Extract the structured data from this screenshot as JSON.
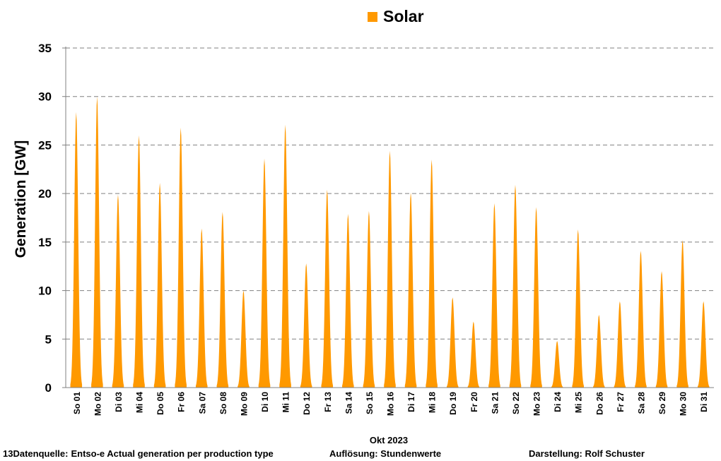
{
  "chart_data": {
    "type": "area",
    "series": [
      {
        "name": "Solar",
        "color": "#FF9900",
        "daily_peaks_GW": [
          28.4,
          30.0,
          19.9,
          26.0,
          21.1,
          26.8,
          16.4,
          18.1,
          10.0,
          23.6,
          27.1,
          12.8,
          20.4,
          17.9,
          18.2,
          24.4,
          20.1,
          23.5,
          9.3,
          6.8,
          19.0,
          20.9,
          18.6,
          4.8,
          16.3,
          7.5,
          8.9,
          14.1,
          12.0,
          15.2,
          8.9
        ]
      }
    ],
    "categories": [
      "So 01",
      "Mo 02",
      "Di 03",
      "Mi 04",
      "Do 05",
      "Fr 06",
      "Sa 07",
      "So 08",
      "Mo 09",
      "Di 10",
      "Mi 11",
      "Do 12",
      "Fr 13",
      "Sa 14",
      "So 15",
      "Mo 16",
      "Di 17",
      "Mi 18",
      "Do 19",
      "Fr 20",
      "Sa 21",
      "So 22",
      "Mo 23",
      "Di 24",
      "Mi 25",
      "Do 26",
      "Fr 27",
      "Sa 28",
      "So 29",
      "Mo 30",
      "Di 31"
    ],
    "ylabel": "Generation   [GW]",
    "xlabel": "Okt 2023",
    "ylim": [
      0,
      35
    ],
    "yticks": [
      0,
      5,
      10,
      15,
      20,
      25,
      30,
      35
    ],
    "grid": true,
    "legend_position": "top-center"
  },
  "legend": {
    "label": "Solar"
  },
  "footer": {
    "source_prefix": "13Datenquelle:",
    "source": "Entso-e  Actual generation per production type",
    "resolution": "Auflösung: Stundenwerte",
    "author": "Darstellung:  Rolf Schuster"
  }
}
